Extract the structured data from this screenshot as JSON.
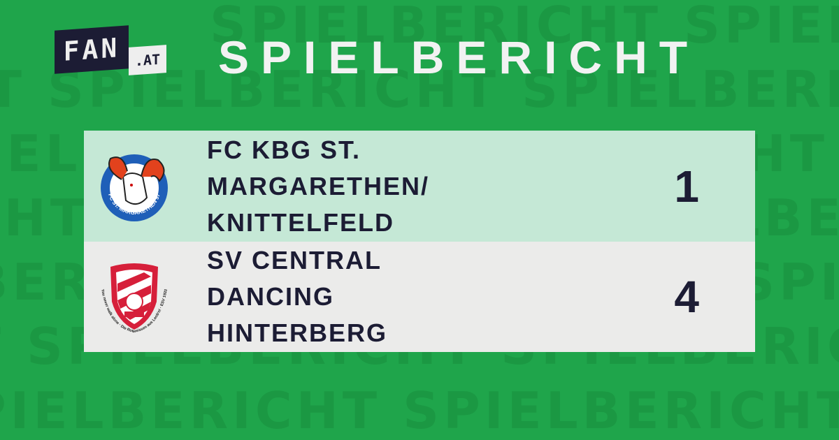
{
  "watermark": {
    "text": "SPIELBERICHT SPIELBERICHT SPIELBERICHT"
  },
  "logo": {
    "brand": "FAN",
    "suffix": ".AT"
  },
  "header": {
    "title": "SPIELBERICHT"
  },
  "match": {
    "home": {
      "name_lines": [
        "FC KBG ST.",
        "MARGARETHEN/",
        "KNITTELFELD"
      ],
      "score": "1",
      "crest_text": "FC ST. MARGARETHEN 97"
    },
    "away": {
      "name_lines": [
        "SV CENTRAL",
        "DANCING",
        "HINTERBERG"
      ],
      "score": "4",
      "crest_text": "You never walk alone · Die Rotweissen aus Leob'n! · ESV 1933"
    }
  },
  "colors": {
    "background": "#1fa54b",
    "home_row": "#c5e8d6",
    "away_row": "#ebebea",
    "text": "#1c1c34"
  }
}
